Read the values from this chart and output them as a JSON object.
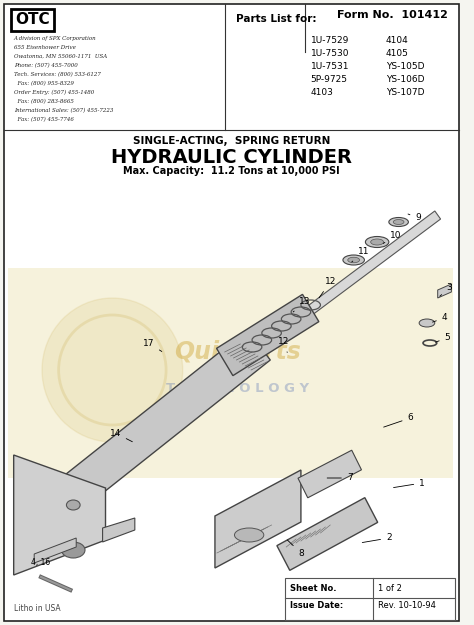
{
  "bg_color": "#f5f5f0",
  "border_color": "#222222",
  "title_line1": "SINGLE-ACTING,  SPRING RETURN",
  "title_line2": "HYDRAULIC CYLINDER",
  "title_line3": "Max. Capacity:  11.2 Tons at 10,000 PSI",
  "form_no": "Form No.  101412",
  "parts_list_label": "Parts List for:",
  "parts_col1": [
    "1U-7529",
    "1U-7530",
    "1U-7531",
    "5P-9725",
    "4103"
  ],
  "parts_col2": [
    "4104",
    "4105",
    "YS-105D",
    "YS-106D",
    "YS-107D"
  ],
  "otc_address": [
    "A division of SPX Corporation",
    "655 Eisenhower Drive",
    "Owatonna, MN 55060-1171  USA",
    "Phone: (507) 455-7000",
    "Tech. Services: (800) 533-6127",
    "  Fax: (800) 955-8329",
    "Order Entry: (507) 455-1480",
    "  Fax: (800) 283-8665",
    "International Sales: (507) 455-7223",
    "  Fax: (507) 455-7746"
  ],
  "sheet_no": "1 of 2",
  "issue_date": "Rev. 10-10-94",
  "litho": "Litho in USA",
  "watermark_color": "#d4a020",
  "diagram_bg": "#f8f5e0",
  "text_color": "#111111",
  "part_labels": [
    [
      9,
      428,
      218,
      415,
      213
    ],
    [
      10,
      405,
      235,
      390,
      245
    ],
    [
      11,
      372,
      252,
      360,
      262
    ],
    [
      12,
      338,
      282,
      325,
      300
    ],
    [
      13,
      312,
      302,
      300,
      312
    ],
    [
      3,
      460,
      288,
      448,
      298
    ],
    [
      4,
      455,
      318,
      440,
      323
    ],
    [
      5,
      458,
      338,
      443,
      343
    ],
    [
      6,
      420,
      418,
      390,
      428
    ],
    [
      17,
      152,
      343,
      168,
      353
    ],
    [
      14,
      118,
      433,
      138,
      443
    ],
    [
      1,
      432,
      483,
      400,
      488
    ],
    [
      2,
      398,
      538,
      368,
      543
    ],
    [
      7,
      358,
      478,
      332,
      478
    ],
    [
      8,
      308,
      553,
      292,
      538
    ]
  ]
}
